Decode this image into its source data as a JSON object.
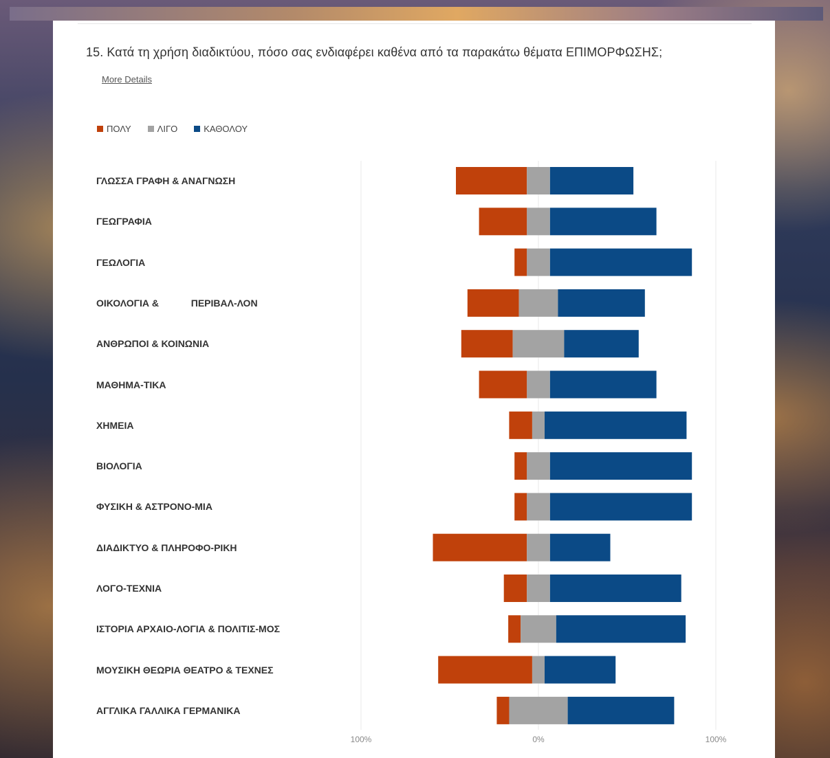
{
  "question": {
    "text": "15.  Κατά τη χρήση διαδικτύου, πόσο σας ενδιαφέρει καθένα από τα παρακάτω θέματα ΕΠΙΜΟΡΦΩΣΗΣ;",
    "more_details": "More Details"
  },
  "colors": {
    "poly": "#c0410b",
    "ligo": "#a3a3a3",
    "katholou": "#0b4a86"
  },
  "chart_data": {
    "type": "bar",
    "orientation": "horizontal",
    "stacked": "diverging",
    "legend_position": "top-left",
    "xlim": [
      -100,
      100
    ],
    "x_tick_labels": [
      "100%",
      "0%",
      "100%"
    ],
    "categories": [
      "ΓΛΩΣΣΑ ΓΡΑΦΗ & ΑΝΑΓΝΩΣΗ",
      "ΓΕΩΓΡΑΦΙΑ",
      "ΓΕΩΛΟΓΙΑ",
      "ΟΙΚΟΛΟΓΙΑ &            ΠΕΡΙΒΑΛ-ΛΟΝ",
      "ΑΝΘΡΩΠΟΙ & ΚΟΙΝΩΝΙΑ",
      "ΜΑΘΗΜΑ-ΤΙΚΑ",
      "ΧΗΜΕΙΑ",
      "ΒΙΟΛΟΓΙΑ",
      "ΦΥΣΙΚΗ & ΑΣΤΡΟΝΟ-ΜΙΑ",
      "ΔΙΑΔΙΚΤΥΟ & ΠΛΗΡΟΦΟ-ΡΙΚΗ",
      "ΛΟΓΟ-ΤΕΧΝΙΑ",
      "ΙΣΤΟΡΙΑ ΑΡΧΑΙΟ-ΛΟΓΙΑ & ΠΟΛΙΤΙΣ-ΜΟΣ",
      "ΜΟΥΣΙΚΗ ΘΕΩΡΙΑ ΘΕΑΤΡΟ & ΤΕΧΝΕΣ",
      "ΑΓΓΛΙΚΑ ΓΑΛΛΙΚΑ ΓΕΡΜΑΝΙΚΑ"
    ],
    "series": [
      {
        "name": "ΠΟΛΥ",
        "values": [
          40,
          27,
          7,
          29,
          29,
          27,
          13,
          7,
          7,
          53,
          13,
          7,
          53,
          7
        ]
      },
      {
        "name": "ΛΙΓΟ",
        "values": [
          13,
          13,
          13,
          22,
          29,
          13,
          7,
          13,
          13,
          13,
          13,
          20,
          7,
          33
        ]
      },
      {
        "name": "ΚΑΘΟΛΟΥ",
        "values": [
          47,
          60,
          80,
          49,
          42,
          60,
          80,
          80,
          80,
          34,
          74,
          73,
          40,
          60
        ]
      }
    ]
  }
}
